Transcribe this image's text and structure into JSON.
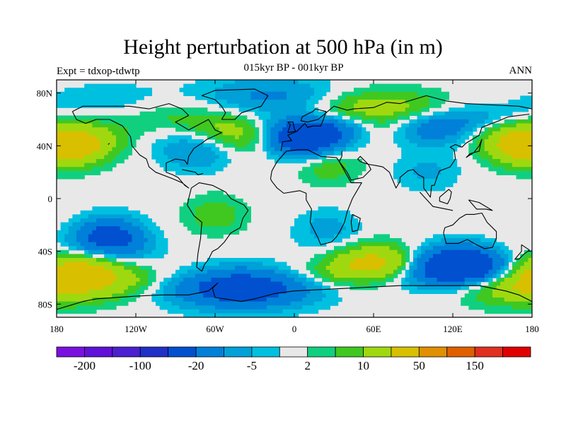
{
  "title": "Height perturbation at 500 hPa (in m)",
  "left_string": "Expt = tdxop-tdwtp",
  "center_string": "015kyr BP - 001kyr BP",
  "right_string": "ANN",
  "map": {
    "projection": "cylindrical-equidistant",
    "lon_range": [
      -180,
      180
    ],
    "lat_range": [
      -90,
      90
    ],
    "background_color": "#e8e8e8",
    "lon_ticks": [
      {
        "value": -180,
        "label": "180"
      },
      {
        "value": -120,
        "label": "120W"
      },
      {
        "value": -60,
        "label": "60W"
      },
      {
        "value": 0,
        "label": "0"
      },
      {
        "value": 60,
        "label": "60E"
      },
      {
        "value": 120,
        "label": "120E"
      },
      {
        "value": 180,
        "label": "180"
      }
    ],
    "lat_ticks": [
      {
        "value": 80,
        "label": "80N"
      },
      {
        "value": 40,
        "label": "40N"
      },
      {
        "value": 0,
        "label": "0"
      },
      {
        "value": -40,
        "label": "40S"
      },
      {
        "value": -80,
        "label": "80S"
      }
    ],
    "anomaly_centers": [
      {
        "lon": 8,
        "lat": 48,
        "value": -45
      },
      {
        "lon": 105,
        "lat": 57,
        "value": -22
      },
      {
        "lon": -20,
        "lat": 77,
        "value": -12
      },
      {
        "lon": -75,
        "lat": 35,
        "value": -10
      },
      {
        "lon": -130,
        "lat": 72,
        "value": -9
      },
      {
        "lon": 100,
        "lat": 20,
        "value": -6
      },
      {
        "lon": -140,
        "lat": -30,
        "value": -30
      },
      {
        "lon": -40,
        "lat": -68,
        "value": -32
      },
      {
        "lon": 125,
        "lat": -52,
        "value": -50
      },
      {
        "lon": 25,
        "lat": -23,
        "value": -7
      },
      {
        "lon": -165,
        "lat": 40,
        "value": 25
      },
      {
        "lon": 170,
        "lat": 40,
        "value": 22
      },
      {
        "lon": -35,
        "lat": 52,
        "value": 20
      },
      {
        "lon": 70,
        "lat": 65,
        "value": 24
      },
      {
        "lon": -110,
        "lat": 68,
        "value": 8
      },
      {
        "lon": -160,
        "lat": -55,
        "value": 24
      },
      {
        "lon": 60,
        "lat": -50,
        "value": 26
      },
      {
        "lon": 175,
        "lat": -65,
        "value": 22
      },
      {
        "lon": 25,
        "lat": 25,
        "value": 8
      },
      {
        "lon": -60,
        "lat": -12,
        "value": 8
      }
    ]
  },
  "colorbar": {
    "colors": [
      "#7a10e0",
      "#6010d8",
      "#4a20d0",
      "#2030c8",
      "#0050d0",
      "#0080d8",
      "#00a0d8",
      "#00c0e0",
      "#e8e8e8",
      "#10d080",
      "#40c820",
      "#a0d810",
      "#d8c000",
      "#e09000",
      "#e06000",
      "#e03020",
      "#e00000"
    ],
    "levels": [
      -200,
      -150,
      -100,
      -50,
      -20,
      -10,
      -5,
      -2,
      2,
      5,
      10,
      20,
      50,
      100,
      150,
      200
    ],
    "labels": [
      {
        "text": "-200",
        "boundary": 1
      },
      {
        "text": "-100",
        "boundary": 3
      },
      {
        "text": "-20",
        "boundary": 5
      },
      {
        "text": "-5",
        "boundary": 7
      },
      {
        "text": "2",
        "boundary": 9
      },
      {
        "text": "10",
        "boundary": 11
      },
      {
        "text": "50",
        "boundary": 13
      },
      {
        "text": "150",
        "boundary": 15
      }
    ]
  }
}
